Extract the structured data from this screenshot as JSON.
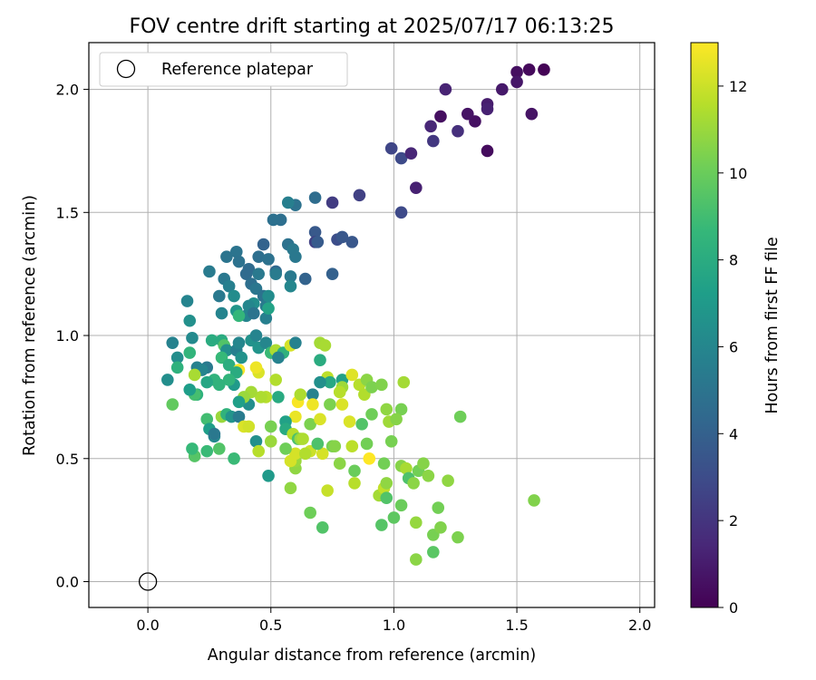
{
  "chart_data": {
    "type": "scatter",
    "title": "FOV centre drift starting at 2025/07/17 06:13:25",
    "xlabel": "Angular distance from reference (arcmin)",
    "ylabel": "Rotation from reference (arcmin)",
    "xlim": [
      -0.24,
      2.06
    ],
    "ylim": [
      -0.105,
      2.19
    ],
    "x_ticks": [
      0.0,
      0.5,
      1.0,
      1.5,
      2.0
    ],
    "x_tick_labels": [
      "0.0",
      "0.5",
      "1.0",
      "1.5",
      "2.0"
    ],
    "y_ticks": [
      0.0,
      0.5,
      1.0,
      1.5,
      2.0
    ],
    "y_tick_labels": [
      "0.0",
      "0.5",
      "1.0",
      "1.5",
      "2.0"
    ],
    "grid": true,
    "legend": {
      "placement": "top-left",
      "entries": [
        "Reference platepar"
      ]
    },
    "reference_point": {
      "x": 0.0,
      "y": 0.0,
      "label": "Reference platepar",
      "marker": "open-circle"
    },
    "colorbar": {
      "label": "Hours from first FF file",
      "range": [
        0,
        13
      ],
      "ticks": [
        0,
        2,
        4,
        6,
        8,
        10,
        12
      ],
      "tick_labels": [
        "0",
        "2",
        "4",
        "6",
        "8",
        "10",
        "12"
      ],
      "colormap": "viridis",
      "colormap_colors": [
        "#440154",
        "#482878",
        "#3e4a89",
        "#31688e",
        "#26828e",
        "#1f9e89",
        "#35b779",
        "#6ece58",
        "#b5de2b",
        "#fde725"
      ]
    },
    "points": [
      [
        1.61,
        2.08,
        0.1
      ],
      [
        1.55,
        2.08,
        0.3
      ],
      [
        1.5,
        2.07,
        0.5
      ],
      [
        1.5,
        2.03,
        0.8
      ],
      [
        1.44,
        2.0,
        0.9
      ],
      [
        1.56,
        1.9,
        0.7
      ],
      [
        1.38,
        1.94,
        1.0
      ],
      [
        1.38,
        1.92,
        1.2
      ],
      [
        1.33,
        1.87,
        0.6
      ],
      [
        1.3,
        1.9,
        0.7
      ],
      [
        1.26,
        1.83,
        1.8
      ],
      [
        1.38,
        1.75,
        0.4
      ],
      [
        1.21,
        2.0,
        1.3
      ],
      [
        1.19,
        1.89,
        0.5
      ],
      [
        1.15,
        1.85,
        1.4
      ],
      [
        1.16,
        1.79,
        2.1
      ],
      [
        0.99,
        1.76,
        2.7
      ],
      [
        1.03,
        1.72,
        2.9
      ],
      [
        1.07,
        1.74,
        1.4
      ],
      [
        1.09,
        1.6,
        1.2
      ],
      [
        1.03,
        1.5,
        2.9
      ],
      [
        0.86,
        1.57,
        2.5
      ],
      [
        0.75,
        1.54,
        2.3
      ],
      [
        0.68,
        1.56,
        4.6
      ],
      [
        0.6,
        1.53,
        4.9
      ],
      [
        0.57,
        1.54,
        5.6
      ],
      [
        0.54,
        1.47,
        4.7
      ],
      [
        0.51,
        1.47,
        4.8
      ],
      [
        0.68,
        1.42,
        3.6
      ],
      [
        0.68,
        1.38,
        2.5
      ],
      [
        0.69,
        1.38,
        3.7
      ],
      [
        0.77,
        1.39,
        3.1
      ],
      [
        0.79,
        1.4,
        3.5
      ],
      [
        0.83,
        1.38,
        3.5
      ],
      [
        0.57,
        1.37,
        4.9
      ],
      [
        0.59,
        1.35,
        5.3
      ],
      [
        0.47,
        1.37,
        4.1
      ],
      [
        0.45,
        1.32,
        4.7
      ],
      [
        0.49,
        1.31,
        4.9
      ],
      [
        0.52,
        1.26,
        4.4
      ],
      [
        0.52,
        1.25,
        5.4
      ],
      [
        0.58,
        1.24,
        5.3
      ],
      [
        0.6,
        1.32,
        5.2
      ],
      [
        0.64,
        1.23,
        4.1
      ],
      [
        0.75,
        1.25,
        4.0
      ],
      [
        0.58,
        1.2,
        6.0
      ],
      [
        0.36,
        1.34,
        5.0
      ],
      [
        0.37,
        1.3,
        4.9
      ],
      [
        0.32,
        1.32,
        5.0
      ],
      [
        0.31,
        1.23,
        5.2
      ],
      [
        0.33,
        1.2,
        5.6
      ],
      [
        0.25,
        1.26,
        5.4
      ],
      [
        0.29,
        1.16,
        5.3
      ],
      [
        0.35,
        1.16,
        6.3
      ],
      [
        0.4,
        1.25,
        4.5
      ],
      [
        0.41,
        1.27,
        4.5
      ],
      [
        0.42,
        1.21,
        4.7
      ],
      [
        0.44,
        1.19,
        5.1
      ],
      [
        0.45,
        1.25,
        5.3
      ],
      [
        0.47,
        1.16,
        4.9
      ],
      [
        0.48,
        1.12,
        5.4
      ],
      [
        0.49,
        1.16,
        6.3
      ],
      [
        0.43,
        1.13,
        6.4
      ],
      [
        0.41,
        1.12,
        6.0
      ],
      [
        0.4,
        1.08,
        5.9
      ],
      [
        0.43,
        1.09,
        5.0
      ],
      [
        0.48,
        1.07,
        5.6
      ],
      [
        0.49,
        1.11,
        7.5
      ],
      [
        0.36,
        1.1,
        6.8
      ],
      [
        0.37,
        1.08,
        8.6
      ],
      [
        0.3,
        1.09,
        5.9
      ],
      [
        0.16,
        1.14,
        5.9
      ],
      [
        0.17,
        1.06,
        6.5
      ],
      [
        0.1,
        0.97,
        5.8
      ],
      [
        0.18,
        0.99,
        6.2
      ],
      [
        0.17,
        0.93,
        8.5
      ],
      [
        0.12,
        0.91,
        6.4
      ],
      [
        0.08,
        0.82,
        6.4
      ],
      [
        0.12,
        0.87,
        8.3
      ],
      [
        0.2,
        0.87,
        5.7
      ],
      [
        0.24,
        0.87,
        5.3
      ],
      [
        0.22,
        0.86,
        5.9
      ],
      [
        0.26,
        0.98,
        8.0
      ],
      [
        0.3,
        0.98,
        8.0
      ],
      [
        0.31,
        0.96,
        9.4
      ],
      [
        0.32,
        0.94,
        6.5
      ],
      [
        0.3,
        0.91,
        8.7
      ],
      [
        0.33,
        0.88,
        8.1
      ],
      [
        0.36,
        0.94,
        5.6
      ],
      [
        0.37,
        0.97,
        6.0
      ],
      [
        0.38,
        0.91,
        6.6
      ],
      [
        0.42,
        0.98,
        6.6
      ],
      [
        0.44,
        1.0,
        5.9
      ],
      [
        0.45,
        0.95,
        6.7
      ],
      [
        0.48,
        0.97,
        6.0
      ],
      [
        0.5,
        0.93,
        8.8
      ],
      [
        0.52,
        0.94,
        11.4
      ],
      [
        0.55,
        0.93,
        8.3
      ],
      [
        0.58,
        0.96,
        12.2
      ],
      [
        0.6,
        0.97,
        5.7
      ],
      [
        0.7,
        0.97,
        11.2
      ],
      [
        0.72,
        0.96,
        11.3
      ],
      [
        0.7,
        0.9,
        8.0
      ],
      [
        0.73,
        0.83,
        11.7
      ],
      [
        0.79,
        0.82,
        7.4
      ],
      [
        0.79,
        0.79,
        11.1
      ],
      [
        0.83,
        0.84,
        12.4
      ],
      [
        0.86,
        0.8,
        11.6
      ],
      [
        0.88,
        0.76,
        11.5
      ],
      [
        0.89,
        0.82,
        10.7
      ],
      [
        0.91,
        0.79,
        10.4
      ],
      [
        0.95,
        0.8,
        10.5
      ],
      [
        0.97,
        0.7,
        10.8
      ],
      [
        0.98,
        0.65,
        11.1
      ],
      [
        1.03,
        0.7,
        10.3
      ],
      [
        1.04,
        0.81,
        11.2
      ],
      [
        0.91,
        0.68,
        10.1
      ],
      [
        0.87,
        0.64,
        9.4
      ],
      [
        0.82,
        0.65,
        12.3
      ],
      [
        0.78,
        0.77,
        11.6
      ],
      [
        0.74,
        0.81,
        7.8
      ],
      [
        0.7,
        0.81,
        6.5
      ],
      [
        0.67,
        0.76,
        5.8
      ],
      [
        0.66,
        0.64,
        10.4
      ],
      [
        0.7,
        0.66,
        12.3
      ],
      [
        0.67,
        0.72,
        12.7
      ],
      [
        0.61,
        0.73,
        12.9
      ],
      [
        0.62,
        0.76,
        11.4
      ],
      [
        0.6,
        0.67,
        12.6
      ],
      [
        0.56,
        0.65,
        7.4
      ],
      [
        0.56,
        0.62,
        7.9
      ],
      [
        0.59,
        0.6,
        11.6
      ],
      [
        0.61,
        0.58,
        9.3
      ],
      [
        0.62,
        0.58,
        11.0
      ],
      [
        0.63,
        0.58,
        11.4
      ],
      [
        0.66,
        0.53,
        12.0
      ],
      [
        0.71,
        0.52,
        12.2
      ],
      [
        0.75,
        0.55,
        10.3
      ],
      [
        0.76,
        0.55,
        10.6
      ],
      [
        0.78,
        0.48,
        10.7
      ],
      [
        0.83,
        0.55,
        11.7
      ],
      [
        0.84,
        0.45,
        10.0
      ],
      [
        0.89,
        0.56,
        10.2
      ],
      [
        0.9,
        0.5,
        13.0
      ],
      [
        0.94,
        0.35,
        11.2
      ],
      [
        0.96,
        0.38,
        11.8
      ],
      [
        0.97,
        0.34,
        9.4
      ],
      [
        0.97,
        0.4,
        10.8
      ],
      [
        0.96,
        0.48,
        10.2
      ],
      [
        0.99,
        0.57,
        10.3
      ],
      [
        1.03,
        0.47,
        10.6
      ],
      [
        1.05,
        0.46,
        11.3
      ],
      [
        1.06,
        0.42,
        9.3
      ],
      [
        1.08,
        0.4,
        10.7
      ],
      [
        1.03,
        0.31,
        10.0
      ],
      [
        1.0,
        0.26,
        9.7
      ],
      [
        1.1,
        0.45,
        10.2
      ],
      [
        1.12,
        0.48,
        10.6
      ],
      [
        1.14,
        0.43,
        10.7
      ],
      [
        1.16,
        0.19,
        10.3
      ],
      [
        1.16,
        0.12,
        9.6
      ],
      [
        1.18,
        0.3,
        10.2
      ],
      [
        1.19,
        0.22,
        10.5
      ],
      [
        1.22,
        0.41,
        10.8
      ],
      [
        1.27,
        0.67,
        10.1
      ],
      [
        1.26,
        0.18,
        10.4
      ],
      [
        1.09,
        0.24,
        10.9
      ],
      [
        1.09,
        0.09,
        10.7
      ],
      [
        0.95,
        0.23,
        9.5
      ],
      [
        1.57,
        0.33,
        10.5
      ],
      [
        0.71,
        0.22,
        9.4
      ],
      [
        0.73,
        0.37,
        11.9
      ],
      [
        0.66,
        0.28,
        10.1
      ],
      [
        0.58,
        0.38,
        10.8
      ],
      [
        0.6,
        0.46,
        10.8
      ],
      [
        0.6,
        0.49,
        11.0
      ],
      [
        0.58,
        0.49,
        12.2
      ],
      [
        0.6,
        0.52,
        12.2
      ],
      [
        0.64,
        0.52,
        11.5
      ],
      [
        0.69,
        0.56,
        9.3
      ],
      [
        0.56,
        0.54,
        10.1
      ],
      [
        0.53,
        0.75,
        7.9
      ],
      [
        0.52,
        0.82,
        11.5
      ],
      [
        0.48,
        0.75,
        11.6
      ],
      [
        0.46,
        0.75,
        11.4
      ],
      [
        0.45,
        0.85,
        12.3
      ],
      [
        0.44,
        0.87,
        12.7
      ],
      [
        0.42,
        0.77,
        11.2
      ],
      [
        0.41,
        0.72,
        6.4
      ],
      [
        0.39,
        0.75,
        11.0
      ],
      [
        0.37,
        0.73,
        7.3
      ],
      [
        0.35,
        0.8,
        7.0
      ],
      [
        0.37,
        0.86,
        12.9
      ],
      [
        0.36,
        0.85,
        8.0
      ],
      [
        0.33,
        0.82,
        8.5
      ],
      [
        0.29,
        0.8,
        8.4
      ],
      [
        0.27,
        0.82,
        8.4
      ],
      [
        0.24,
        0.81,
        7.7
      ],
      [
        0.2,
        0.76,
        8.3
      ],
      [
        0.19,
        0.76,
        9.1
      ],
      [
        0.17,
        0.78,
        7.2
      ],
      [
        0.19,
        0.84,
        11.3
      ],
      [
        0.1,
        0.72,
        9.8
      ],
      [
        0.24,
        0.66,
        9.0
      ],
      [
        0.25,
        0.62,
        7.2
      ],
      [
        0.27,
        0.59,
        6.1
      ],
      [
        0.27,
        0.6,
        5.2
      ],
      [
        0.3,
        0.67,
        11.0
      ],
      [
        0.32,
        0.68,
        8.4
      ],
      [
        0.34,
        0.67,
        6.7
      ],
      [
        0.37,
        0.67,
        5.4
      ],
      [
        0.39,
        0.63,
        12.3
      ],
      [
        0.41,
        0.63,
        12.1
      ],
      [
        0.44,
        0.57,
        6.5
      ],
      [
        0.45,
        0.53,
        11.6
      ],
      [
        0.5,
        0.57,
        11.0
      ],
      [
        0.5,
        0.63,
        10.3
      ],
      [
        0.49,
        0.43,
        7.0
      ],
      [
        0.35,
        0.5,
        8.8
      ],
      [
        0.29,
        0.54,
        9.4
      ],
      [
        0.24,
        0.53,
        8.8
      ],
      [
        0.19,
        0.51,
        9.5
      ],
      [
        0.18,
        0.54,
        8.7
      ],
      [
        0.53,
        0.91,
        5.8
      ],
      [
        0.74,
        0.72,
        10.4
      ],
      [
        0.79,
        0.72,
        12.3
      ],
      [
        0.84,
        0.4,
        11.6
      ],
      [
        1.01,
        0.66,
        10.6
      ]
    ]
  }
}
